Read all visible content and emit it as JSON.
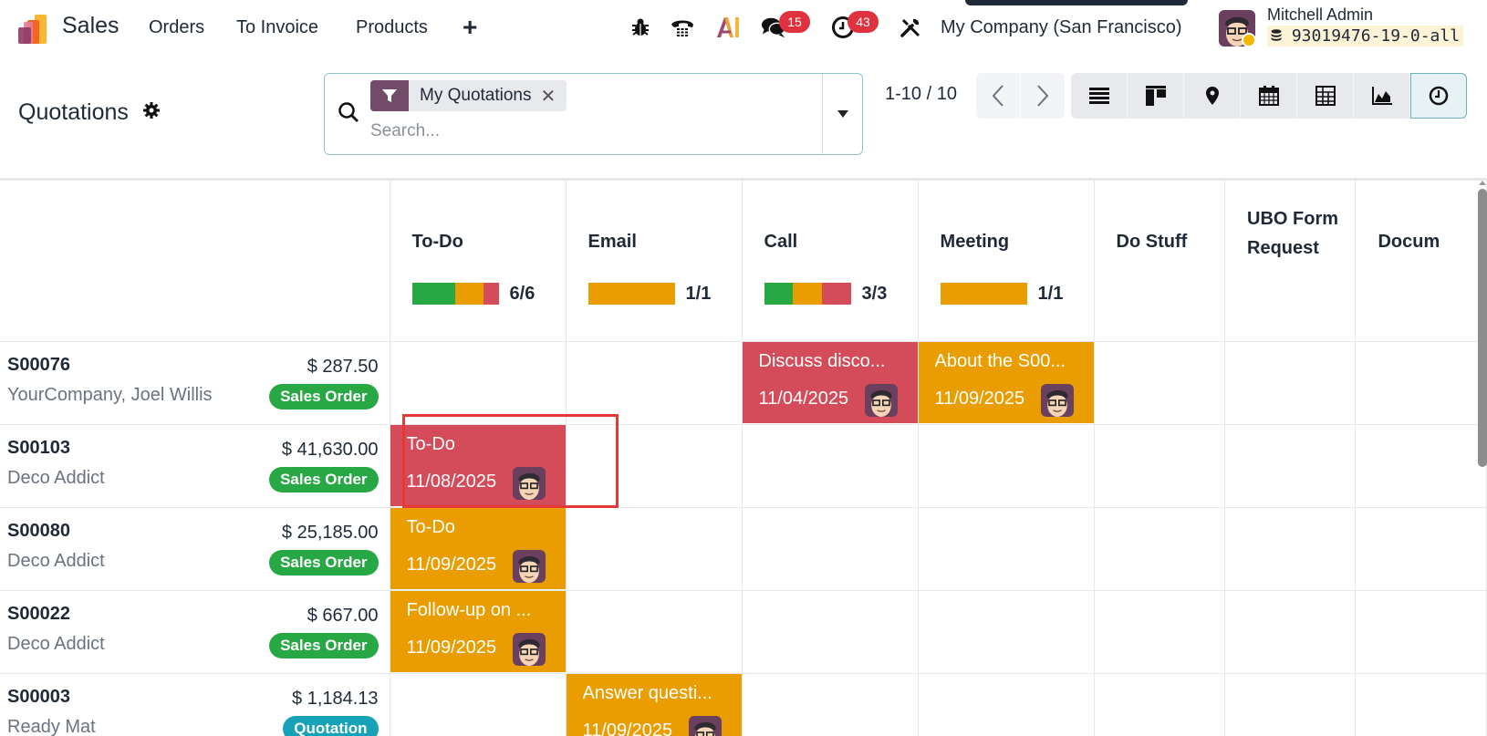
{
  "topbar": {
    "app_name": "Sales",
    "nav": [
      "Orders",
      "To Invoice",
      "Products"
    ],
    "new_label": "+",
    "messages_count": "15",
    "activities_count": "43",
    "company": "My Company (San Francisco)",
    "user_name": "Mitchell Admin",
    "database": "93019476-19-0-all"
  },
  "control_panel": {
    "title": "Quotations",
    "search": {
      "facet_label": "My Quotations",
      "placeholder": "Search..."
    },
    "pager": "1-10 / 10",
    "views": [
      "list",
      "kanban",
      "map",
      "calendar",
      "pivot",
      "graph",
      "activity"
    ],
    "active_view": "activity"
  },
  "colors": {
    "overdue": "#d44c59",
    "today": "#e99d00",
    "planned": "#28a745",
    "sales_order_tag": "#28a745",
    "quotation_tag": "#17a2b8",
    "brand": "#714b67"
  },
  "columns": [
    {
      "title": "To-Do",
      "count": "6/6",
      "progress": [
        {
          "color": "#28a745",
          "pct": 50
        },
        {
          "color": "#e99d00",
          "pct": 33
        },
        {
          "color": "#d44c59",
          "pct": 17
        }
      ]
    },
    {
      "title": "Email",
      "count": "1/1",
      "progress": [
        {
          "color": "#e99d00",
          "pct": 100
        }
      ]
    },
    {
      "title": "Call",
      "count": "3/3",
      "progress": [
        {
          "color": "#28a745",
          "pct": 33
        },
        {
          "color": "#e99d00",
          "pct": 34
        },
        {
          "color": "#d44c59",
          "pct": 33
        }
      ]
    },
    {
      "title": "Meeting",
      "count": "1/1",
      "progress": [
        {
          "color": "#e99d00",
          "pct": 100
        }
      ]
    },
    {
      "title": "Do Stuff"
    },
    {
      "title": "UBO Form Request"
    },
    {
      "title": "Docum"
    }
  ],
  "rows": [
    {
      "name": "S00076",
      "partner": "YourCompany, Joel Willis",
      "amount": "$ 287.50",
      "tag": "Sales Order",
      "tag_color": "#28a745",
      "activities": {
        "2": {
          "title": "Discuss disco...",
          "date": "11/04/2025",
          "color": "#d44c59"
        },
        "3": {
          "title": "About the S00...",
          "date": "11/09/2025",
          "color": "#e99d00"
        }
      }
    },
    {
      "name": "S00103",
      "partner": "Deco Addict",
      "amount": "$ 41,630.00",
      "tag": "Sales Order",
      "tag_color": "#28a745",
      "activities": {
        "0": {
          "title": "To-Do",
          "date": "11/08/2025",
          "color": "#d44c59"
        }
      }
    },
    {
      "name": "S00080",
      "partner": "Deco Addict",
      "amount": "$ 25,185.00",
      "tag": "Sales Order",
      "tag_color": "#28a745",
      "activities": {
        "0": {
          "title": "To-Do",
          "date": "11/09/2025",
          "color": "#e99d00"
        }
      }
    },
    {
      "name": "S00022",
      "partner": "Deco Addict",
      "amount": "$ 667.00",
      "tag": "Sales Order",
      "tag_color": "#28a745",
      "activities": {
        "0": {
          "title": "Follow-up on ...",
          "date": "11/09/2025",
          "color": "#e99d00"
        }
      }
    },
    {
      "name": "S00003",
      "partner": "Ready Mat",
      "amount": "$ 1,184.13",
      "tag": "Quotation",
      "tag_color": "#17a2b8",
      "activities": {
        "1": {
          "title": "Answer questi...",
          "date": "11/09/2025",
          "color": "#e99d00"
        }
      }
    }
  ]
}
